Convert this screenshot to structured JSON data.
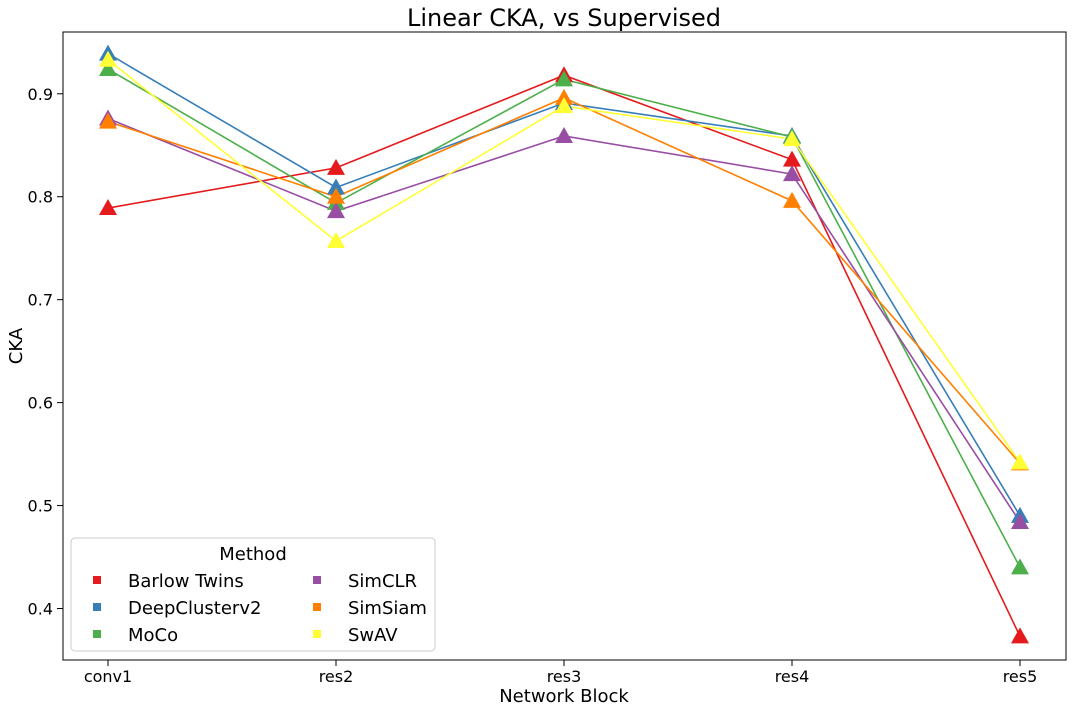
{
  "chart_data": {
    "type": "line",
    "title": "Linear CKA, vs Supervised",
    "xlabel": "Network Block",
    "ylabel": "CKA",
    "categories": [
      "conv1",
      "res2",
      "res3",
      "res4",
      "res5"
    ],
    "ylim": [
      0.35,
      0.96
    ],
    "yticks": [
      0.4,
      0.5,
      0.6,
      0.7,
      0.8,
      0.9
    ],
    "grid": false,
    "legend": {
      "title": "Method",
      "position": "lower-left",
      "columns": 2
    },
    "series": [
      {
        "name": "Barlow Twins",
        "color": "#e41a1c",
        "values": [
          0.789,
          0.828,
          0.918,
          0.836,
          0.373
        ]
      },
      {
        "name": "DeepClusterv2",
        "color": "#377eb8",
        "values": [
          0.939,
          0.809,
          0.891,
          0.859,
          0.49
        ]
      },
      {
        "name": "MoCo",
        "color": "#4daf4a",
        "values": [
          0.924,
          0.794,
          0.914,
          0.858,
          0.44
        ]
      },
      {
        "name": "SimCLR",
        "color": "#984ea3",
        "values": [
          0.876,
          0.786,
          0.859,
          0.822,
          0.484
        ]
      },
      {
        "name": "SimSiam",
        "color": "#ff7f00",
        "values": [
          0.873,
          0.8,
          0.896,
          0.796,
          0.541
        ]
      },
      {
        "name": "SwAV",
        "color": "#ffff33",
        "values": [
          0.933,
          0.757,
          0.888,
          0.856,
          0.542
        ]
      }
    ]
  }
}
